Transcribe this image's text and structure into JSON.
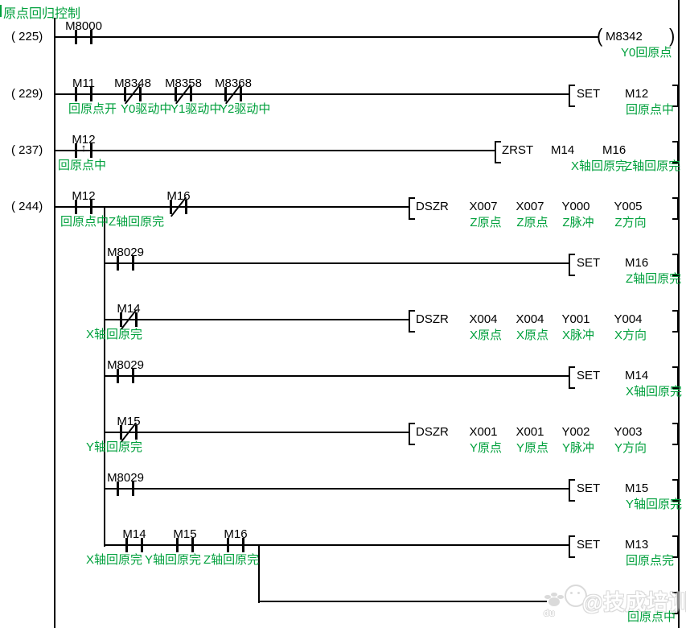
{
  "title": "原点回归控制",
  "colors": {
    "comment": "#00A03C",
    "line": "#000000",
    "background": "#FFFFFF"
  },
  "watermark": {
    "text": "@技成培训网",
    "badge": "du"
  },
  "rungs": [
    {
      "number": "( 225)",
      "contacts": [
        {
          "device": "M8000",
          "label": "",
          "type": "no"
        }
      ],
      "coil": {
        "device": "M8342",
        "label": "Y0回原点"
      }
    },
    {
      "number": "( 229)",
      "contacts": [
        {
          "device": "M11",
          "label": "回原点开",
          "type": "no"
        },
        {
          "device": "M8348",
          "label": "Y0驱动中",
          "type": "nc"
        },
        {
          "device": "M8358",
          "label": "Y1驱动中",
          "type": "nc"
        },
        {
          "device": "M8368",
          "label": "Y2驱动中",
          "type": "nc"
        }
      ],
      "instruction": {
        "op": "SET",
        "args": [
          {
            "device": "M12",
            "label": "回原点中"
          }
        ]
      }
    },
    {
      "number": "( 237)",
      "contacts": [
        {
          "device": "M12",
          "label": "回原点中",
          "type": "rise"
        }
      ],
      "instruction": {
        "op": "ZRST",
        "args": [
          {
            "device": "M14",
            "label": "X轴回原完"
          },
          {
            "device": "M16",
            "label": "Z轴回原完"
          }
        ]
      }
    },
    {
      "number": "( 244)",
      "contacts": [
        {
          "device": "M12",
          "label": "回原点中",
          "type": "no"
        },
        {
          "device": "M16",
          "label": "Z轴回原完",
          "type": "nc"
        }
      ],
      "instruction": {
        "op": "DSZR",
        "args": [
          {
            "device": "X007",
            "label": "Z原点"
          },
          {
            "device": "X007",
            "label": "Z原点"
          },
          {
            "device": "Y000",
            "label": "Z脉冲"
          },
          {
            "device": "Y005",
            "label": "Z方向"
          }
        ]
      }
    },
    {
      "contacts": [
        {
          "device": "M8029",
          "label": "",
          "type": "no"
        }
      ],
      "instruction": {
        "op": "SET",
        "args": [
          {
            "device": "M16",
            "label": "Z轴回原完"
          }
        ]
      }
    },
    {
      "contacts": [
        {
          "device": "M14",
          "label": "X轴回原完",
          "type": "nc"
        }
      ],
      "instruction": {
        "op": "DSZR",
        "args": [
          {
            "device": "X004",
            "label": "X原点"
          },
          {
            "device": "X004",
            "label": "X原点"
          },
          {
            "device": "Y001",
            "label": "X脉冲"
          },
          {
            "device": "Y004",
            "label": "X方向"
          }
        ]
      }
    },
    {
      "contacts": [
        {
          "device": "M8029",
          "label": "",
          "type": "no"
        }
      ],
      "instruction": {
        "op": "SET",
        "args": [
          {
            "device": "M14",
            "label": "X轴回原完"
          }
        ]
      }
    },
    {
      "contacts": [
        {
          "device": "M15",
          "label": "Y轴回原完",
          "type": "nc"
        }
      ],
      "instruction": {
        "op": "DSZR",
        "args": [
          {
            "device": "X001",
            "label": "Y原点"
          },
          {
            "device": "X001",
            "label": "Y原点"
          },
          {
            "device": "Y002",
            "label": "Y脉冲"
          },
          {
            "device": "Y003",
            "label": "Y方向"
          }
        ]
      }
    },
    {
      "contacts": [
        {
          "device": "M8029",
          "label": "",
          "type": "no"
        }
      ],
      "instruction": {
        "op": "SET",
        "args": [
          {
            "device": "M15",
            "label": "Y轴回原完"
          }
        ]
      }
    },
    {
      "contacts": [
        {
          "device": "M14",
          "label": "X轴回原完",
          "type": "no"
        },
        {
          "device": "M15",
          "label": "Y轴回原完",
          "type": "no"
        },
        {
          "device": "M16",
          "label": "Z轴回原完",
          "type": "no"
        }
      ],
      "instruction": {
        "op": "SET",
        "args": [
          {
            "device": "M13",
            "label": "回原点完"
          }
        ]
      }
    },
    {
      "instruction": {
        "op": "",
        "args": [
          {
            "device": "",
            "label": "回原点中"
          }
        ]
      }
    }
  ]
}
